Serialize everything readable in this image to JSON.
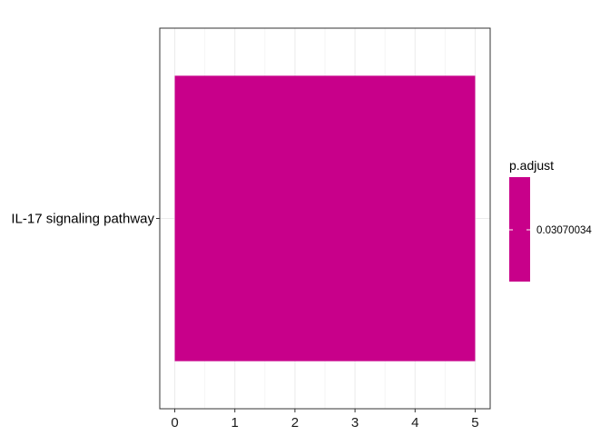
{
  "chart_data": {
    "type": "bar",
    "orientation": "horizontal",
    "categories": [
      "IL-17 signaling pathway"
    ],
    "values": [
      5
    ],
    "xlim": [
      -0.25,
      5.25
    ],
    "x_ticks": [
      0,
      1,
      2,
      3,
      4,
      5
    ],
    "title": "",
    "xlabel": "",
    "ylabel": "",
    "grid": true,
    "legend": {
      "title": "p.adjust",
      "labels": [
        "0.03070034"
      ],
      "placement": "right"
    },
    "bar_color": "#C8008A",
    "colors": {
      "grid_major": "#EBEBEB",
      "grid_minor": "#F5F5F5",
      "panel_border": "#333333"
    }
  }
}
